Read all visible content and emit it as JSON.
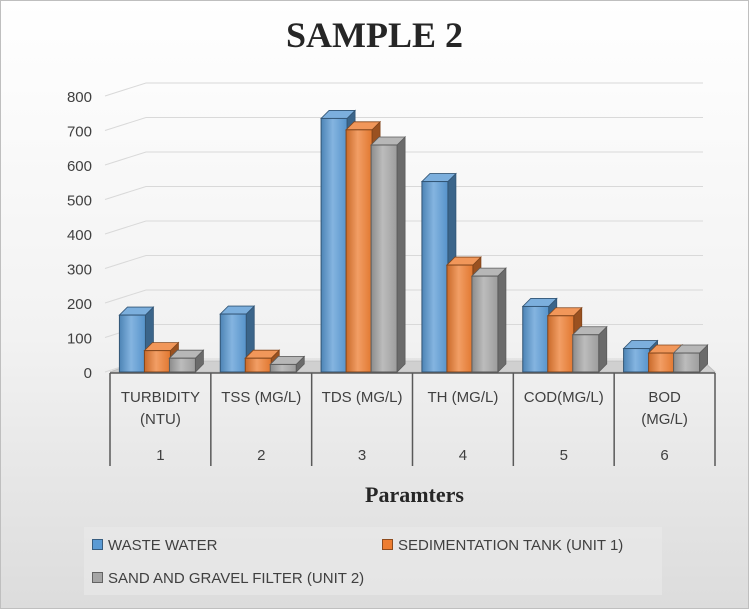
{
  "chart_data": {
    "type": "bar",
    "title": "SAMPLE 2",
    "xlabel": "Paramters",
    "ylabel": "",
    "ylim": [
      0,
      800
    ],
    "yticks": [
      0,
      100,
      200,
      300,
      400,
      500,
      600,
      700,
      800
    ],
    "categories": [
      {
        "label_lines": [
          "TURBIDITY",
          "(NTU)"
        ],
        "index": "1"
      },
      {
        "label_lines": [
          "TSS (MG/L)"
        ],
        "index": "2"
      },
      {
        "label_lines": [
          "TDS (MG/L)"
        ],
        "index": "3"
      },
      {
        "label_lines": [
          "TH (MG/L)"
        ],
        "index": "4"
      },
      {
        "label_lines": [
          "COD(MG/L)"
        ],
        "index": "5"
      },
      {
        "label_lines": [
          "BOD",
          "(MG/L)"
        ],
        "index": "6"
      }
    ],
    "series": [
      {
        "name": "WASTE WATER",
        "color": "#5b9bd5",
        "values": [
          165,
          168,
          735,
          552,
          190,
          68
        ]
      },
      {
        "name": "SEDIMENTATION TANK (UNIT 1)",
        "color": "#ed7d31",
        "values": [
          62,
          40,
          702,
          310,
          163,
          55
        ]
      },
      {
        "name": "SAND AND GRAVEL FILTER (UNIT 2)",
        "color": "#a5a5a5",
        "values": [
          40,
          22,
          658,
          278,
          108,
          55
        ]
      }
    ],
    "grid": true,
    "legend_position": "bottom"
  }
}
